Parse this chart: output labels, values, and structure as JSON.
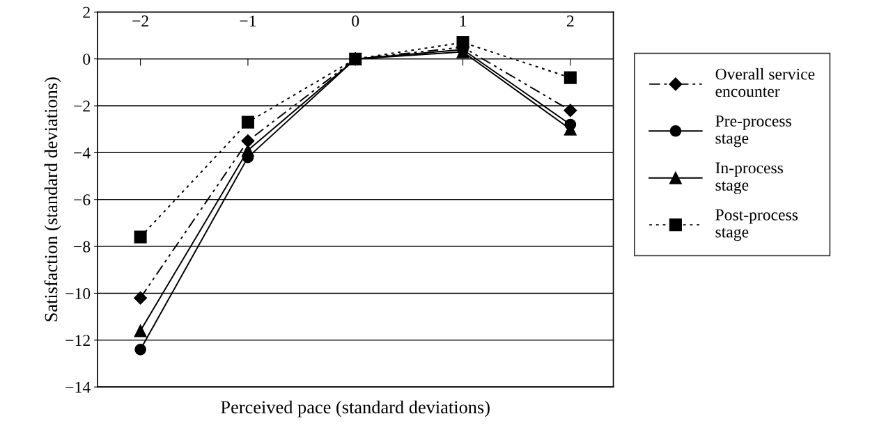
{
  "chart_data": {
    "type": "line",
    "xlabel": "Perceived pace (standard deviations)",
    "ylabel": "Satisfaction (standard deviations)",
    "categories": [
      "−2",
      "−1",
      "0",
      "1",
      "2"
    ],
    "series": [
      {
        "name": "Overall service\nencounter",
        "color": "#000000",
        "marker": "diamond",
        "line_style": "dashed",
        "values": [
          -10.2,
          -3.5,
          0,
          0.5,
          -2.2
        ]
      },
      {
        "name": "Pre-process\nstage",
        "color": "#000000",
        "marker": "circle",
        "line_style": "solid",
        "values": [
          -12.4,
          -4.2,
          0,
          0.4,
          -2.8
        ]
      },
      {
        "name": "In-process\nstage",
        "color": "#000000",
        "marker": "triangle",
        "line_style": "solid",
        "values": [
          -11.6,
          -3.9,
          0,
          0.3,
          -3.0
        ]
      },
      {
        "name": "Post-process\nstage",
        "color": "#000000",
        "marker": "square",
        "line_style": "dotted",
        "values": [
          -7.6,
          -2.7,
          0,
          0.7,
          -0.8
        ]
      }
    ],
    "ylim": [
      -14,
      2
    ],
    "yticks": [
      {
        "value": -14,
        "label": "−14"
      },
      {
        "value": -12,
        "label": "−12"
      },
      {
        "value": -10,
        "label": "−10"
      },
      {
        "value": -8,
        "label": "−8"
      },
      {
        "value": -6,
        "label": "−6"
      },
      {
        "value": -4,
        "label": "−4"
      },
      {
        "value": -2,
        "label": "−2"
      },
      0,
      2
    ],
    "grid": "y",
    "legend": "right"
  }
}
